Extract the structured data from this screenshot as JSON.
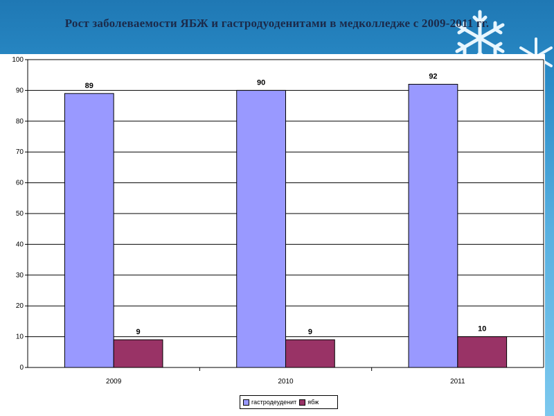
{
  "slide": {
    "title": "Рост заболеваемости ЯБЖ и гастродуоденитами в медколледже с 2009-2011 гг."
  },
  "colors": {
    "series_1": "#9999ff",
    "series_2": "#993366",
    "gridline": "#000000",
    "background_top": "#1f78b4",
    "background_bottom": "#7cc8ee"
  },
  "chart_data": {
    "type": "bar",
    "categories": [
      "2009",
      "2010",
      "2011"
    ],
    "series": [
      {
        "name": "гастродеуденит",
        "values": [
          89,
          90,
          92
        ]
      },
      {
        "name": "ябж",
        "values": [
          9,
          9,
          10
        ]
      }
    ],
    "ylim": [
      0,
      100
    ],
    "yticks": [
      0,
      10,
      20,
      30,
      40,
      50,
      60,
      70,
      80,
      90,
      100
    ],
    "grid": true,
    "data_labels": true,
    "legend": "bottom"
  }
}
